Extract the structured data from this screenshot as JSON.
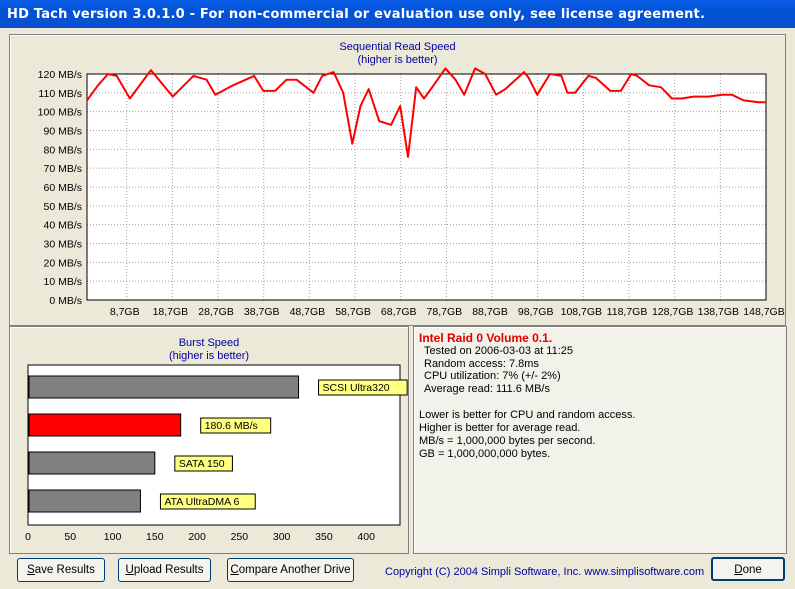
{
  "window": {
    "title": "HD Tach version 3.0.1.0  - For non-commercial or evaluation use only, see license agreement."
  },
  "sequential_chart": {
    "title": "Sequential Read Speed",
    "subtitle": "(higher is better)"
  },
  "burst_chart": {
    "title": "Burst Speed",
    "subtitle": "(higher is better)"
  },
  "chart_data": [
    {
      "type": "line",
      "title": "Sequential Read Speed",
      "subtitle": "(higher is better)",
      "ylabel": "MB/s",
      "ylim": [
        0,
        120
      ],
      "y_tick_labels": [
        "0 MB/s",
        "10 MB/s",
        "20 MB/s",
        "30 MB/s",
        "40 MB/s",
        "50 MB/s",
        "60 MB/s",
        "70 MB/s",
        "80 MB/s",
        "90 MB/s",
        "100 MB/s",
        "110 MB/s",
        "120 MB/s"
      ],
      "y_ticks": [
        0,
        10,
        20,
        30,
        40,
        50,
        60,
        70,
        80,
        90,
        100,
        110,
        120
      ],
      "xlim": [
        0,
        148.7
      ],
      "x_tick_labels": [
        "8,7GB",
        "18,7GB",
        "28,7GB",
        "38,7GB",
        "48,7GB",
        "58,7GB",
        "68,7GB",
        "78,7GB",
        "88,7GB",
        "98,7GB",
        "108,7GB",
        "118,7GB",
        "128,7GB",
        "138,7GB",
        "148,7GB"
      ],
      "x_ticks": [
        8.7,
        18.7,
        28.7,
        38.7,
        48.7,
        58.7,
        68.7,
        78.7,
        88.7,
        98.7,
        108.7,
        118.7,
        128.7,
        138.7,
        148.7
      ],
      "grid": true,
      "line_color": "#ff0000",
      "series": [
        {
          "x": [
            0,
            2.4,
            4.6,
            6.5,
            9.4,
            14,
            18.8,
            23.3,
            26.2,
            28.1,
            32,
            36.6,
            38.6,
            41.2,
            43.7,
            45.9,
            49.6,
            51.5,
            54,
            56.1,
            58.1,
            59.9,
            61.7,
            64,
            66.6,
            68.6,
            70.3,
            72.1,
            73.8,
            75.9,
            78.5,
            80.7,
            82.6,
            85,
            87.2,
            89.6,
            91.6,
            95.7,
            96.7,
            98.6,
            101.4,
            103.9,
            105.2,
            106.9,
            109.8,
            111.4,
            114.6,
            116.9,
            119.2,
            120.5,
            123.1,
            125.7,
            128.1,
            130.3,
            132.8,
            136.1,
            139.1,
            141.2,
            143.8,
            147.1,
            148.7
          ],
          "y": [
            106,
            114,
            120,
            119,
            107,
            122,
            108,
            119,
            117,
            109,
            114,
            119,
            111,
            111,
            117,
            117,
            110,
            119,
            121,
            110,
            83,
            103,
            112,
            95,
            93,
            103,
            76,
            113,
            107,
            114,
            123,
            117,
            109,
            123,
            120,
            109,
            112,
            121,
            118,
            109,
            120,
            119,
            110,
            110,
            119,
            118,
            111,
            111,
            120,
            119,
            114,
            113,
            107,
            107,
            108,
            108,
            109,
            109,
            106,
            105,
            105
          ]
        }
      ]
    },
    {
      "type": "bar",
      "orientation": "horizontal",
      "title": "Burst Speed",
      "subtitle": "(higher is better)",
      "xlim": [
        0,
        440
      ],
      "x_ticks": [
        0,
        50,
        100,
        150,
        200,
        250,
        300,
        350,
        400
      ],
      "grid": false,
      "categories": [
        "SCSI Ultra320",
        "180.6 MB/s",
        "SATA 150",
        "ATA UltraDMA 6"
      ],
      "values": [
        320,
        180.6,
        150,
        133
      ],
      "colors": [
        "#808080",
        "#ff0000",
        "#808080",
        "#808080"
      ],
      "label_background": "#ffff80"
    }
  ],
  "info": {
    "drive_title": "Intel Raid 0 Volume 0.1.",
    "tested_on": "Tested on 2006-03-03 at 11:25",
    "random_access": "Random access: 7.8ms",
    "cpu": "CPU utilization: 7% (+/- 2%)",
    "avg_read": "Average read: 111.6 MB/s",
    "note1": "Lower is better for CPU and random access.",
    "note2": "Higher is better for average read.",
    "note3": "MB/s = 1,000,000 bytes per second.",
    "note4": "GB = 1,000,000,000 bytes."
  },
  "footer": {
    "save_first": "S",
    "save_rest": "ave Results",
    "upload_first": "U",
    "upload_rest": "pload Results",
    "compare_first": "C",
    "compare_rest": "ompare Another Drive",
    "copyright": "Copyright (C) 2004 Simpli Software, Inc. www.simplisoftware.com",
    "done_first": "D",
    "done_rest": "one"
  }
}
